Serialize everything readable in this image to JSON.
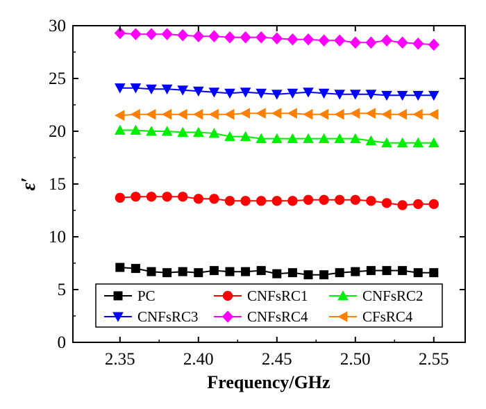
{
  "chart_data": {
    "type": "line",
    "title": "",
    "xlabel": "Frequency/GHz",
    "ylabel": "ε′",
    "xlim": [
      2.32,
      2.57
    ],
    "ylim": [
      0,
      30
    ],
    "xticks": [
      2.35,
      2.4,
      2.45,
      2.5,
      2.55
    ],
    "xtick_labels": [
      "2.35",
      "2.40",
      "2.45",
      "2.50",
      "2.55"
    ],
    "yticks": [
      0,
      5,
      10,
      15,
      20,
      25,
      30
    ],
    "ytick_labels": [
      "0",
      "5",
      "10",
      "15",
      "20",
      "25",
      "30"
    ],
    "grid": false,
    "legend_position": "bottom",
    "x": [
      2.35,
      2.36,
      2.37,
      2.38,
      2.39,
      2.4,
      2.41,
      2.42,
      2.43,
      2.44,
      2.45,
      2.46,
      2.47,
      2.48,
      2.49,
      2.5,
      2.51,
      2.52,
      2.53,
      2.54,
      2.55
    ],
    "series": [
      {
        "name": "PC",
        "color": "#000000",
        "marker": "square",
        "values": [
          7.1,
          7.0,
          6.7,
          6.6,
          6.7,
          6.6,
          6.8,
          6.7,
          6.7,
          6.8,
          6.5,
          6.6,
          6.4,
          6.4,
          6.6,
          6.7,
          6.8,
          6.8,
          6.8,
          6.6,
          6.6
        ]
      },
      {
        "name": "CNFsRC1",
        "color": "#ff0000",
        "marker": "circle",
        "values": [
          13.7,
          13.8,
          13.8,
          13.8,
          13.8,
          13.6,
          13.6,
          13.4,
          13.4,
          13.4,
          13.4,
          13.4,
          13.5,
          13.5,
          13.5,
          13.5,
          13.4,
          13.2,
          13.0,
          13.1,
          13.1
        ]
      },
      {
        "name": "CNFsRC2",
        "color": "#00ee00",
        "marker": "triangle-up",
        "values": [
          20.1,
          20.1,
          20.0,
          20.0,
          19.9,
          19.9,
          19.8,
          19.5,
          19.5,
          19.3,
          19.3,
          19.3,
          19.3,
          19.3,
          19.3,
          19.3,
          19.1,
          18.9,
          18.9,
          18.9,
          18.9
        ]
      },
      {
        "name": "CNFsRC3",
        "color": "#0000ff",
        "marker": "triangle-down",
        "values": [
          24.1,
          24.1,
          24.0,
          24.0,
          23.9,
          23.8,
          23.7,
          23.6,
          23.7,
          23.6,
          23.5,
          23.6,
          23.7,
          23.6,
          23.5,
          23.5,
          23.5,
          23.4,
          23.4,
          23.4,
          23.4
        ]
      },
      {
        "name": "CNFsRC4",
        "color": "#ff00ff",
        "marker": "diamond",
        "values": [
          29.3,
          29.2,
          29.2,
          29.2,
          29.1,
          29.0,
          29.0,
          28.9,
          28.9,
          28.9,
          28.8,
          28.7,
          28.7,
          28.6,
          28.6,
          28.4,
          28.4,
          28.6,
          28.4,
          28.3,
          28.2
        ]
      },
      {
        "name": "CFsRC4",
        "color": "#ff8000",
        "marker": "triangle-left",
        "values": [
          21.5,
          21.6,
          21.6,
          21.6,
          21.6,
          21.6,
          21.6,
          21.6,
          21.7,
          21.7,
          21.7,
          21.7,
          21.6,
          21.6,
          21.6,
          21.7,
          21.7,
          21.6,
          21.6,
          21.6,
          21.6
        ]
      }
    ]
  }
}
